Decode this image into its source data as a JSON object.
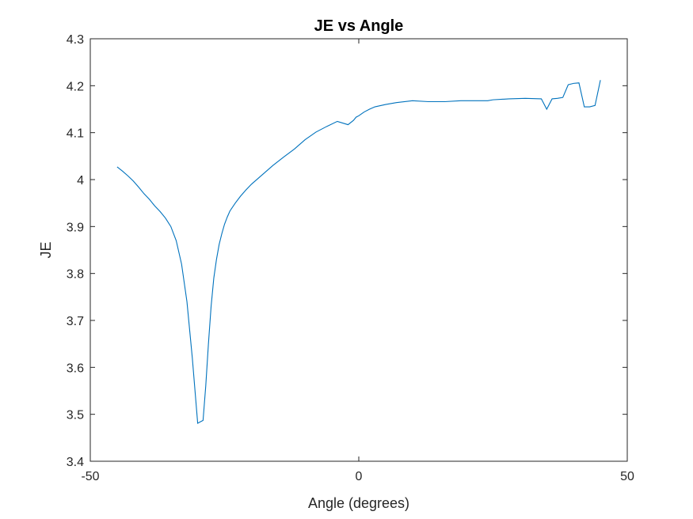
{
  "chart_data": {
    "type": "line",
    "title": "JE vs Angle",
    "xlabel": "Angle (degrees)",
    "ylabel": "JE",
    "xlim": [
      -50,
      50
    ],
    "ylim": [
      3.4,
      4.3
    ],
    "xticks": [
      -50,
      0,
      50
    ],
    "yticks": [
      3.4,
      3.5,
      3.6,
      3.7,
      3.8,
      3.9,
      4,
      4.1,
      4.2,
      4.3
    ],
    "xtick_labels": [
      "-50",
      "0",
      "50"
    ],
    "ytick_labels": [
      "3.4",
      "3.5",
      "3.6",
      "3.7",
      "3.8",
      "3.9",
      "4",
      "4.1",
      "4.2",
      "4.3"
    ],
    "grid": false,
    "line_color": "#0072BD",
    "series": [
      {
        "x": [
          -45,
          -44,
          -43,
          -42,
          -41,
          -40,
          -39,
          -38,
          -37,
          -36,
          -35,
          -34,
          -33,
          -32,
          -31,
          -30,
          -29.5,
          -29,
          -28.5,
          -28,
          -27.5,
          -27,
          -26.5,
          -26,
          -25.5,
          -25,
          -24.5,
          -24,
          -23,
          -22,
          -21,
          -20,
          -18,
          -16,
          -14,
          -12,
          -10,
          -8,
          -6,
          -4,
          -2,
          -1,
          -0.5,
          0,
          0.5,
          1,
          2,
          3,
          5,
          7,
          10,
          13,
          16,
          19,
          22,
          24,
          25,
          28,
          31,
          34,
          35,
          36,
          37,
          38,
          39,
          40,
          41,
          42,
          43,
          44,
          45
        ],
        "y": [
          4.027,
          4.018,
          4.008,
          3.997,
          3.984,
          3.97,
          3.958,
          3.944,
          3.932,
          3.918,
          3.9,
          3.87,
          3.82,
          3.74,
          3.62,
          3.481,
          3.484,
          3.487,
          3.56,
          3.65,
          3.73,
          3.79,
          3.83,
          3.862,
          3.885,
          3.905,
          3.92,
          3.933,
          3.95,
          3.965,
          3.978,
          3.99,
          4.01,
          4.03,
          4.048,
          4.065,
          4.085,
          4.101,
          4.113,
          4.124,
          4.117,
          4.126,
          4.133,
          4.136,
          4.14,
          4.144,
          4.15,
          4.155,
          4.16,
          4.164,
          4.168,
          4.166,
          4.166,
          4.168,
          4.168,
          4.168,
          4.17,
          4.172,
          4.173,
          4.172,
          4.15,
          4.172,
          4.173,
          4.175,
          4.202,
          4.205,
          4.206,
          4.155,
          4.155,
          4.158,
          4.212
        ]
      }
    ]
  }
}
